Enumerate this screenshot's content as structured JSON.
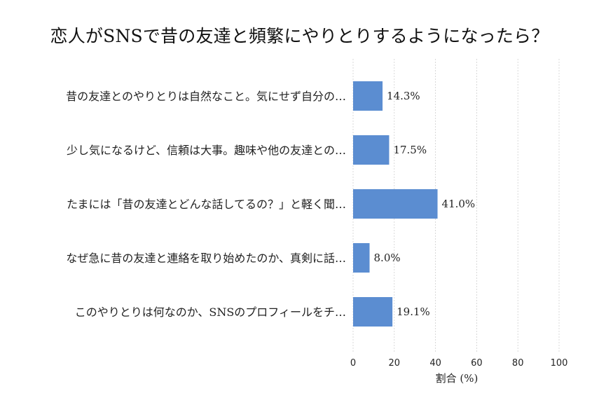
{
  "chart_data": {
    "type": "bar",
    "orientation": "horizontal",
    "title": "恋人がSNSで昔の友達と頻繁にやりとりするようになったら？",
    "categories": [
      "昔の友達とのやりとりは自然なこと。気にせず自分の…",
      "少し気になるけど、信頼は大事。趣味や他の友達との…",
      "たまには「昔の友達とどんな話してるの？」と軽く聞…",
      "なぜ急に昔の友達と連絡を取り始めたのか、真剣に話…",
      "このやりとりは何なのか、SNSのプロフィールをチ…"
    ],
    "values": [
      14.3,
      17.5,
      41.0,
      8.0,
      19.1
    ],
    "value_labels": [
      "14.3%",
      "17.5%",
      "41.0%",
      "8.0%",
      "19.1%"
    ],
    "xlabel": "割合 (%)",
    "xlim": [
      0,
      100
    ],
    "xticks": [
      "0",
      "20",
      "40",
      "60",
      "80",
      "100"
    ],
    "grid": "vertical-dashed",
    "bar_color": "#5b8dd1"
  }
}
